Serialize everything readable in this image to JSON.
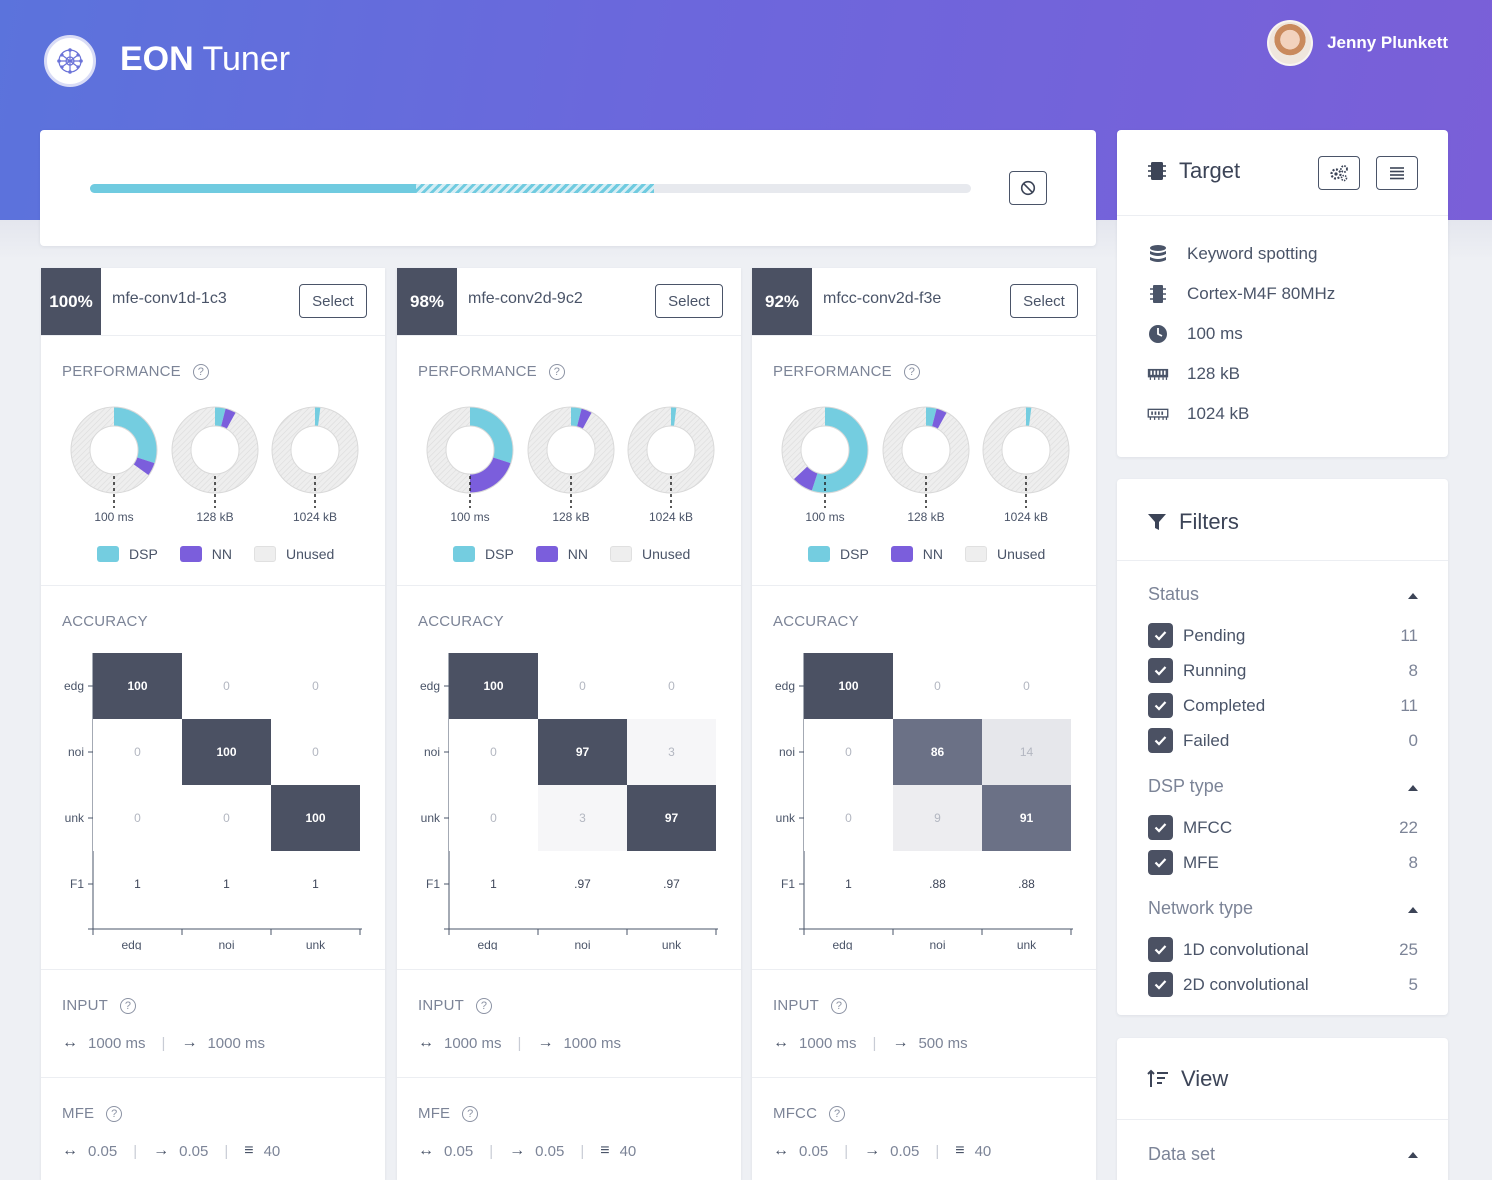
{
  "app": {
    "title_bold": "EON",
    "title_rest": " Tuner"
  },
  "user": {
    "name": "Jenny Plunkett"
  },
  "progress": {
    "completed_fraction": 0.37,
    "running_fraction": 0.27
  },
  "legend": {
    "dsp": "DSP",
    "nn": "NN",
    "unused": "Unused"
  },
  "colors": {
    "dsp": "#74cde0",
    "nn": "#7b5edc",
    "unused": "#eeeeee",
    "matrix_dark": "#4b5163"
  },
  "section_titles": {
    "performance": "PERFORMANCE",
    "accuracy": "ACCURACY",
    "input": "INPUT"
  },
  "models": [
    {
      "score": "100%",
      "name": "mfe-conv1d-1c3",
      "select_label": "Select",
      "performance": [
        {
          "label": "100 ms",
          "dsp": 0.3,
          "nn": 0.05
        },
        {
          "label": "128 kB",
          "dsp": 0.04,
          "nn": 0.04
        },
        {
          "label": "1024 kB",
          "dsp": 0.02,
          "nn": 0.0
        }
      ],
      "matrix": {
        "rows": [
          "edg",
          "noi",
          "unk"
        ],
        "cols": [
          "edg",
          "noi",
          "unk"
        ],
        "values": [
          [
            100,
            0,
            0
          ],
          [
            0,
            100,
            0
          ],
          [
            0,
            0,
            100
          ]
        ],
        "f1_label": "F1",
        "f1": [
          "1",
          "1",
          "1"
        ]
      },
      "input": {
        "window": "1000 ms",
        "stride": "1000 ms"
      },
      "dsp_block": {
        "name": "MFE",
        "frame_length": "0.05",
        "frame_stride": "0.05",
        "filters": "40"
      }
    },
    {
      "score": "98%",
      "name": "mfe-conv2d-9c2",
      "select_label": "Select",
      "performance": [
        {
          "label": "100 ms",
          "dsp": 0.3,
          "nn": 0.2
        },
        {
          "label": "128 kB",
          "dsp": 0.04,
          "nn": 0.04
        },
        {
          "label": "1024 kB",
          "dsp": 0.02,
          "nn": 0.0
        }
      ],
      "matrix": {
        "rows": [
          "edg",
          "noi",
          "unk"
        ],
        "cols": [
          "edg",
          "noi",
          "unk"
        ],
        "values": [
          [
            100,
            0,
            0
          ],
          [
            0,
            97,
            3
          ],
          [
            0,
            3,
            97
          ]
        ],
        "f1_label": "F1",
        "f1": [
          "1",
          ".97",
          ".97"
        ]
      },
      "input": {
        "window": "1000 ms",
        "stride": "1000 ms"
      },
      "dsp_block": {
        "name": "MFE",
        "frame_length": "0.05",
        "frame_stride": "0.05",
        "filters": "40"
      }
    },
    {
      "score": "92%",
      "name": "mfcc-conv2d-f3e",
      "select_label": "Select",
      "performance": [
        {
          "label": "100 ms",
          "dsp": 0.55,
          "nn": 0.08
        },
        {
          "label": "128 kB",
          "dsp": 0.04,
          "nn": 0.04
        },
        {
          "label": "1024 kB",
          "dsp": 0.02,
          "nn": 0.0
        }
      ],
      "matrix": {
        "rows": [
          "edg",
          "noi",
          "unk"
        ],
        "cols": [
          "edg",
          "noi",
          "unk"
        ],
        "values": [
          [
            100,
            0,
            0
          ],
          [
            0,
            86,
            14
          ],
          [
            0,
            9,
            91
          ]
        ],
        "f1_label": "F1",
        "f1": [
          "1",
          ".88",
          ".88"
        ]
      },
      "input": {
        "window": "1000 ms",
        "stride": "500 ms"
      },
      "dsp_block": {
        "name": "MFCC",
        "frame_length": "0.05",
        "frame_stride": "0.05",
        "filters": "40"
      }
    }
  ],
  "target": {
    "title": "Target",
    "rows": [
      {
        "icon": "database-icon",
        "text": "Keyword spotting"
      },
      {
        "icon": "chip-icon",
        "text": "Cortex-M4F 80MHz"
      },
      {
        "icon": "clock-icon",
        "text": "100 ms"
      },
      {
        "icon": "ram-icon",
        "text": "128 kB"
      },
      {
        "icon": "rom-icon",
        "text": "1024 kB"
      }
    ]
  },
  "filters": {
    "title": "Filters",
    "groups": [
      {
        "title": "Status",
        "items": [
          {
            "label": "Pending",
            "count": "11"
          },
          {
            "label": "Running",
            "count": "8"
          },
          {
            "label": "Completed",
            "count": "11"
          },
          {
            "label": "Failed",
            "count": "0"
          }
        ]
      },
      {
        "title": "DSP type",
        "items": [
          {
            "label": "MFCC",
            "count": "22"
          },
          {
            "label": "MFE",
            "count": "8"
          }
        ]
      },
      {
        "title": "Network type",
        "items": [
          {
            "label": "1D convolutional",
            "count": "25"
          },
          {
            "label": "2D convolutional",
            "count": "5"
          }
        ]
      }
    ]
  },
  "view": {
    "title": "View",
    "group_title": "Data set"
  }
}
